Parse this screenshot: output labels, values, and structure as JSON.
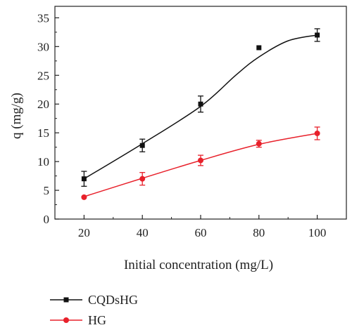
{
  "chart_data": {
    "type": "line",
    "title": "",
    "xlabel": "Initial concentration (mg/L)",
    "ylabel": "q (mg/g)",
    "x": [
      20,
      40,
      60,
      80,
      100
    ],
    "xlim": [
      10,
      110
    ],
    "ylim": [
      0,
      37
    ],
    "xticks": [
      20,
      40,
      60,
      80,
      100
    ],
    "yticks": [
      0,
      5,
      10,
      15,
      20,
      25,
      30,
      35
    ],
    "grid": false,
    "legend_position": "below",
    "series": [
      {
        "name": "CQDsHG",
        "color": "#111111",
        "marker": "square",
        "line": "smooth-fit",
        "values": [
          7.0,
          12.8,
          20.0,
          29.8,
          32.0
        ],
        "errors": [
          1.3,
          1.1,
          1.4,
          0,
          1.1
        ]
      },
      {
        "name": "HG",
        "color": "#e8212b",
        "marker": "circle",
        "line": "smooth-fit",
        "values": [
          3.8,
          7.0,
          10.2,
          13.1,
          14.9
        ],
        "errors": [
          0,
          1.1,
          0.9,
          0.6,
          1.1
        ]
      }
    ]
  }
}
